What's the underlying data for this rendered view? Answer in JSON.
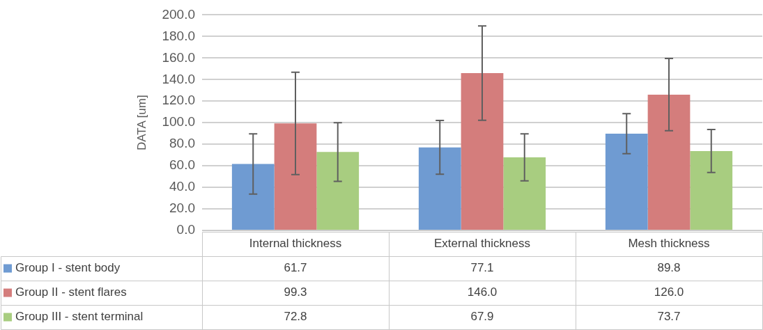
{
  "chart_data": {
    "type": "bar",
    "ylabel": "DATA [um]",
    "categories": [
      "Internal thickness",
      "External thickness",
      "Mesh thickness"
    ],
    "series": [
      {
        "name": "Group I - stent body",
        "color": "#6f9bd2",
        "values": [
          61.7,
          77.1,
          89.8
        ],
        "errors": [
          27.9,
          25.0,
          18.5
        ],
        "value_labels": [
          "61.7",
          "77.1",
          "89.8"
        ]
      },
      {
        "name": "Group II - stent flares",
        "color": "#d47d7c",
        "values": [
          99.3,
          146.0,
          126.0
        ],
        "errors": [
          47.5,
          43.7,
          33.5
        ],
        "value_labels": [
          "99.3",
          "146.0",
          "126.0"
        ]
      },
      {
        "name": "Group III - stent terminal",
        "color": "#a8cd80",
        "values": [
          72.8,
          67.9,
          73.7
        ],
        "errors": [
          27.2,
          21.8,
          20.0
        ],
        "value_labels": [
          "72.8",
          "67.9",
          "73.7"
        ]
      }
    ],
    "ylim": [
      0,
      200
    ],
    "yticks": [
      {
        "value": 0,
        "label": "0.0"
      },
      {
        "value": 20,
        "label": "20.0"
      },
      {
        "value": 40,
        "label": "40.0"
      },
      {
        "value": 60,
        "label": "60.0"
      },
      {
        "value": 80,
        "label": "80.0"
      },
      {
        "value": 100,
        "label": "100.0"
      },
      {
        "value": 120,
        "label": "120.0"
      },
      {
        "value": 140,
        "label": "140.0"
      },
      {
        "value": 160,
        "label": "160.0"
      },
      {
        "value": 180,
        "label": "180.0"
      },
      {
        "value": 200,
        "label": "200.0"
      }
    ],
    "grid": "y",
    "legend": "bottom"
  }
}
